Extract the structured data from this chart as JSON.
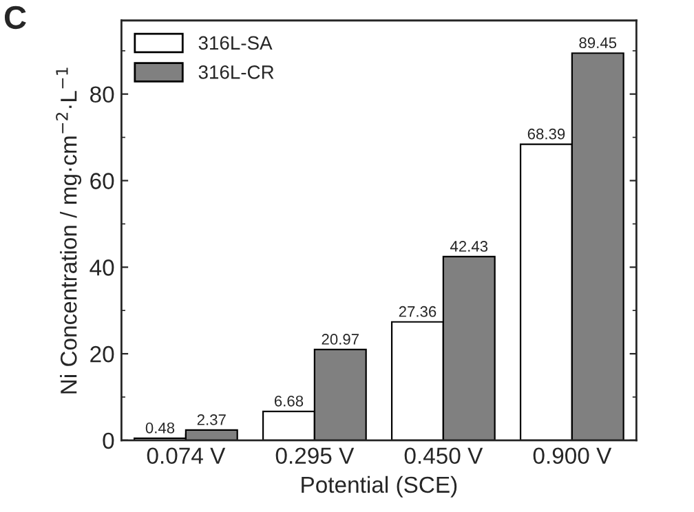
{
  "chart_data": {
    "type": "bar",
    "xlabel": "Potential (SCE)",
    "ylabel": "Ni Concentration / mg·cm$^{−2}$·L$^{−1}$",
    "annotations": [
      "C"
    ],
    "categories": [
      "0.074 V",
      "0.295 V",
      "0.450 V",
      "0.900 V"
    ],
    "series": [
      {
        "name": "316L-SA",
        "color": "#ffffff",
        "values": [
          0.48,
          6.68,
          27.36,
          68.39
        ]
      },
      {
        "name": "316L-CR",
        "color": "#808080",
        "values": [
          2.37,
          20.97,
          42.43,
          89.45
        ]
      }
    ],
    "ylim": [
      0,
      97
    ],
    "yticks": [
      0,
      20,
      40,
      60,
      80
    ],
    "data_labels": true,
    "legend": "top left",
    "grid": false
  }
}
